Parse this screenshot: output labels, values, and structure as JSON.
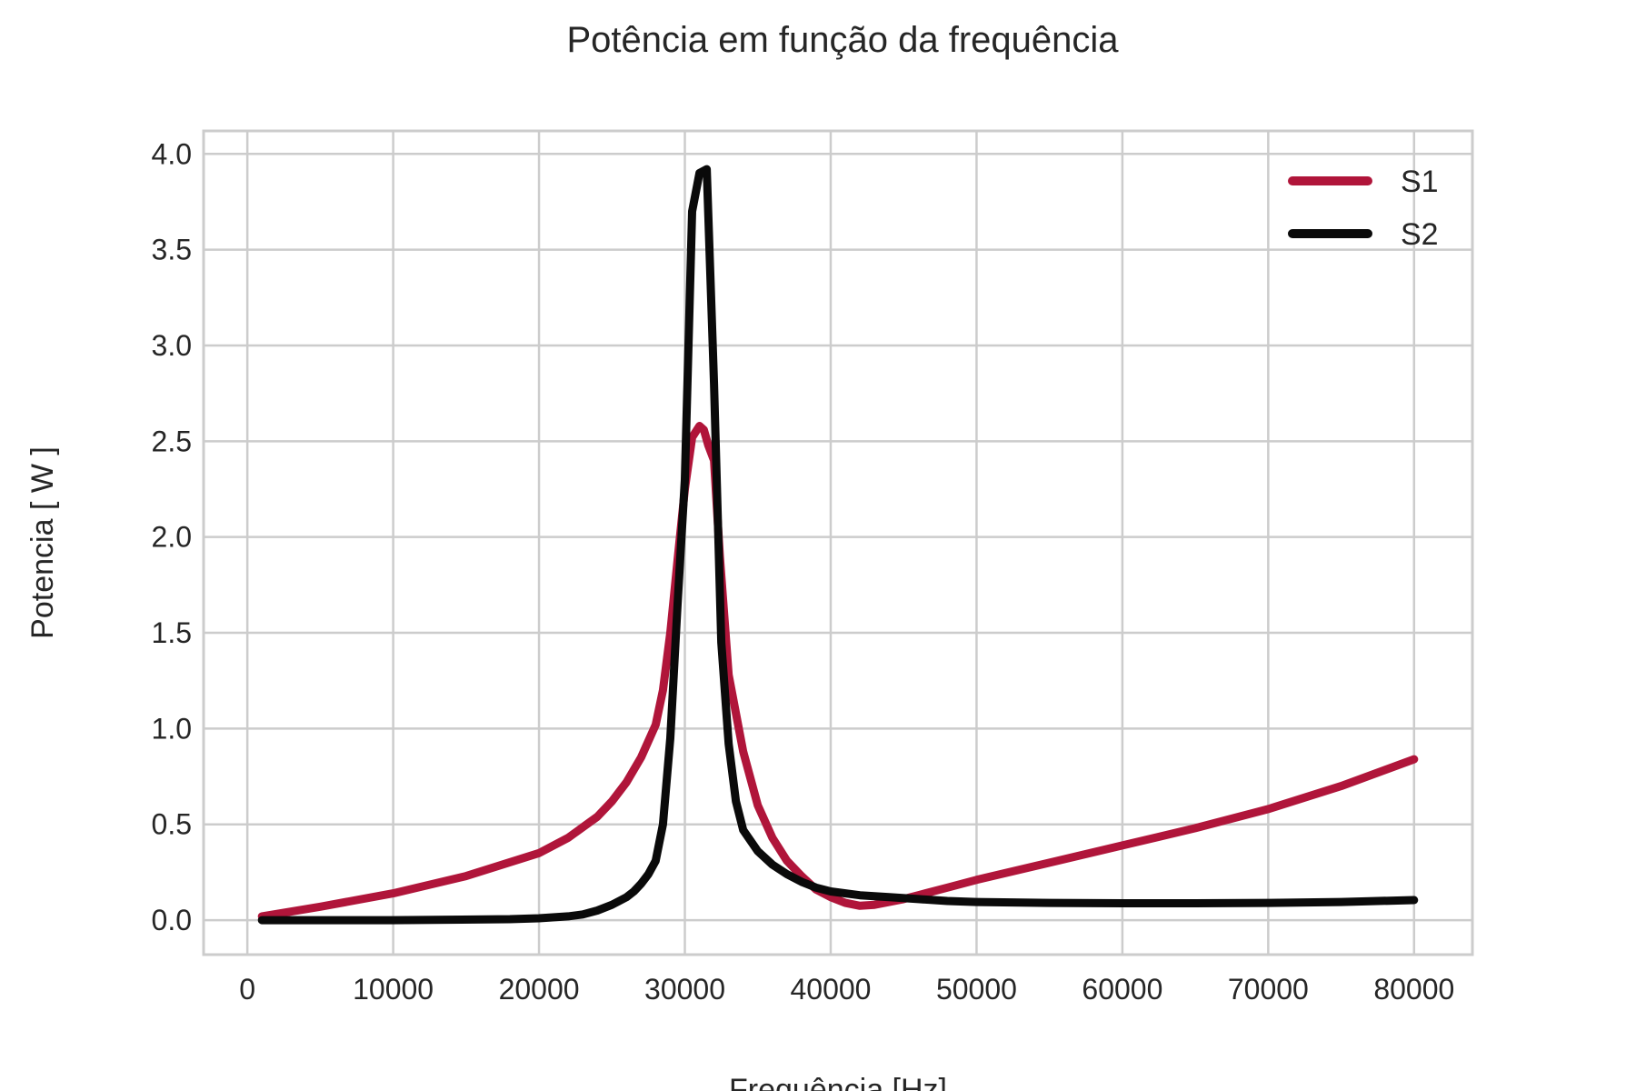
{
  "chart_data": {
    "type": "line",
    "title": "Potência em função da frequência",
    "xlabel": "Frequência [Hz]",
    "ylabel": "Potencia [ W ]",
    "xlim": [
      -3000,
      84000
    ],
    "ylim": [
      -0.18,
      4.12
    ],
    "xticks": [
      0,
      10000,
      20000,
      30000,
      40000,
      50000,
      60000,
      70000,
      80000
    ],
    "yticks": [
      0.0,
      0.5,
      1.0,
      1.5,
      2.0,
      2.5,
      3.0,
      3.5,
      4.0
    ],
    "xtick_labels": [
      "0",
      "10000",
      "20000",
      "30000",
      "40000",
      "50000",
      "60000",
      "70000",
      "80000"
    ],
    "ytick_labels": [
      "0.0",
      "0.5",
      "1.0",
      "1.5",
      "2.0",
      "2.5",
      "3.0",
      "3.5",
      "4.0"
    ],
    "grid": true,
    "legend_position": "top-right",
    "series": [
      {
        "name": "S1",
        "color": "#b0153a",
        "x": [
          1000,
          5000,
          10000,
          15000,
          20000,
          22000,
          24000,
          25000,
          26000,
          27000,
          28000,
          28500,
          29000,
          29500,
          30000,
          30500,
          31000,
          31300,
          31600,
          32000,
          32400,
          33000,
          34000,
          35000,
          36000,
          37000,
          38000,
          39000,
          40000,
          41000,
          42000,
          43000,
          44000,
          45000,
          46000,
          48000,
          50000,
          55000,
          60000,
          65000,
          70000,
          75000,
          80000
        ],
        "y": [
          0.02,
          0.07,
          0.14,
          0.23,
          0.35,
          0.43,
          0.54,
          0.62,
          0.72,
          0.85,
          1.02,
          1.2,
          1.5,
          1.88,
          2.25,
          2.52,
          2.58,
          2.56,
          2.48,
          2.4,
          1.9,
          1.28,
          0.88,
          0.6,
          0.43,
          0.31,
          0.23,
          0.16,
          0.12,
          0.09,
          0.075,
          0.08,
          0.095,
          0.11,
          0.13,
          0.17,
          0.21,
          0.3,
          0.39,
          0.48,
          0.58,
          0.7,
          0.84
        ]
      },
      {
        "name": "S2",
        "color": "#0a0a0a",
        "x": [
          1000,
          10000,
          18000,
          20000,
          22000,
          23000,
          24000,
          25000,
          26000,
          26500,
          27000,
          27500,
          28000,
          28500,
          29000,
          29500,
          30000,
          30500,
          31000,
          31500,
          32000,
          32500,
          33000,
          33500,
          34000,
          35000,
          36000,
          37000,
          38000,
          39000,
          40000,
          42000,
          44000,
          46000,
          48000,
          50000,
          55000,
          60000,
          65000,
          70000,
          75000,
          80000
        ],
        "y": [
          0.0,
          0.0,
          0.005,
          0.01,
          0.02,
          0.03,
          0.05,
          0.08,
          0.12,
          0.15,
          0.19,
          0.24,
          0.31,
          0.5,
          0.95,
          1.65,
          2.3,
          3.7,
          3.9,
          3.92,
          2.8,
          1.45,
          0.92,
          0.62,
          0.47,
          0.36,
          0.29,
          0.24,
          0.2,
          0.17,
          0.15,
          0.13,
          0.12,
          0.11,
          0.1,
          0.095,
          0.09,
          0.088,
          0.088,
          0.09,
          0.095,
          0.105
        ]
      }
    ]
  }
}
